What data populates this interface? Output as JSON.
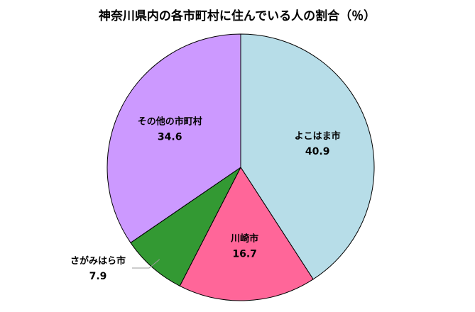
{
  "chart_data": {
    "type": "pie",
    "title": "神奈川県内の各市町村に住んでいる人の割合（％）",
    "start_angle_deg": 0,
    "direction": "clockwise",
    "slices": [
      {
        "label": "よこはま市",
        "value": 40.9,
        "value_text": "40.9",
        "color": "#b7dde8",
        "label_placement": "inside"
      },
      {
        "label": "川崎市",
        "value": 16.7,
        "value_text": "16.7",
        "color": "#ff6699",
        "label_placement": "inside"
      },
      {
        "label": "さがみはら市",
        "value": 7.9,
        "value_text": "7.9",
        "color": "#339933",
        "label_placement": "outside"
      },
      {
        "label": "その他の市町村",
        "value": 34.6,
        "value_text": "34.6",
        "color": "#cc99ff",
        "label_placement": "inside"
      }
    ]
  }
}
